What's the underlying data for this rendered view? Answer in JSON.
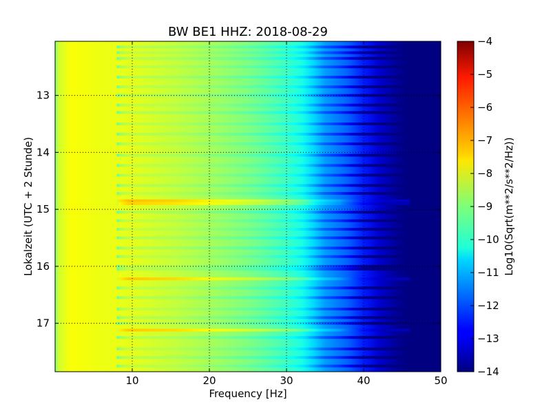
{
  "chart_data": {
    "type": "heatmap",
    "title": "BW BE1 HHZ: 2018-08-29",
    "xlabel": "Frequency [Hz]",
    "ylabel": "Lokalzeit (UTC + 2 Stunde)",
    "xlim": [
      0,
      50
    ],
    "ylim": [
      17.85,
      12.05
    ],
    "x_ticks": [
      10,
      20,
      30,
      40,
      50
    ],
    "x_tick_labels": [
      "10",
      "20",
      "30",
      "40",
      "50"
    ],
    "y_ticks": [
      13,
      14,
      15,
      16,
      17
    ],
    "y_tick_labels": [
      "13",
      "14",
      "15",
      "16",
      "17"
    ],
    "grid": true,
    "colormap": "jet",
    "colorbar": {
      "label": "Log10(Sqrt(m**2/s**2/Hz))",
      "range": [
        -14,
        -4
      ],
      "ticks": [
        -4,
        -5,
        -6,
        -7,
        -8,
        -9,
        -10,
        -11,
        -12,
        -13,
        -14
      ],
      "tick_labels": [
        "−4",
        "−5",
        "−6",
        "−7",
        "−8",
        "−9",
        "−10",
        "−11",
        "−12",
        "−13",
        "−14"
      ]
    },
    "frequency_profile": {
      "frequency_hz": [
        0,
        0.5,
        2,
        5,
        10,
        15,
        20,
        25,
        30,
        32,
        33.5,
        35,
        38,
        40,
        42,
        44,
        45,
        46,
        50
      ],
      "log_amplitude": [
        -8.9,
        -8.2,
        -7.8,
        -7.9,
        -8.0,
        -8.3,
        -8.6,
        -9.0,
        -9.6,
        -10.0,
        -10.6,
        -11.2,
        -11.8,
        -12.5,
        -13.2,
        -13.7,
        -13.9,
        -14.0,
        -14.0
      ]
    },
    "bands": [
      {
        "time": 12.15,
        "delta": -0.6
      },
      {
        "time": 12.25,
        "delta": -0.5
      },
      {
        "time": 12.35,
        "delta": -0.6
      },
      {
        "time": 12.5,
        "delta": -0.5
      },
      {
        "time": 12.68,
        "delta": -0.6
      },
      {
        "time": 12.85,
        "delta": -0.5
      },
      {
        "time": 13.0,
        "delta": -0.6
      },
      {
        "time": 13.17,
        "delta": -0.5
      },
      {
        "time": 13.3,
        "delta": -0.6
      },
      {
        "time": 13.5,
        "delta": -0.5
      },
      {
        "time": 13.68,
        "delta": -0.6
      },
      {
        "time": 13.85,
        "delta": -0.5
      },
      {
        "time": 14.05,
        "delta": -0.6
      },
      {
        "time": 14.23,
        "delta": -0.5
      },
      {
        "time": 14.4,
        "delta": -0.5
      },
      {
        "time": 14.58,
        "delta": -0.6
      },
      {
        "time": 14.72,
        "delta": -0.5
      },
      {
        "time": 14.85,
        "delta": 0.7
      },
      {
        "time": 14.9,
        "delta": 0.5
      },
      {
        "time": 15.05,
        "delta": -0.6
      },
      {
        "time": 15.2,
        "delta": -0.5
      },
      {
        "time": 15.35,
        "delta": -0.5
      },
      {
        "time": 15.5,
        "delta": -0.6
      },
      {
        "time": 15.68,
        "delta": -0.6
      },
      {
        "time": 15.83,
        "delta": -0.5
      },
      {
        "time": 16.0,
        "delta": -0.5
      },
      {
        "time": 16.05,
        "delta": -0.6
      },
      {
        "time": 16.22,
        "delta": 0.6
      },
      {
        "time": 16.38,
        "delta": -0.5
      },
      {
        "time": 16.55,
        "delta": -0.6
      },
      {
        "time": 16.75,
        "delta": -0.5
      },
      {
        "time": 16.9,
        "delta": -0.6
      },
      {
        "time": 17.0,
        "delta": -0.5
      },
      {
        "time": 17.12,
        "delta": 0.6
      },
      {
        "time": 17.25,
        "delta": -0.6
      },
      {
        "time": 17.45,
        "delta": -0.5
      },
      {
        "time": 17.6,
        "delta": -0.6
      },
      {
        "time": 17.75,
        "delta": -0.5
      }
    ]
  }
}
